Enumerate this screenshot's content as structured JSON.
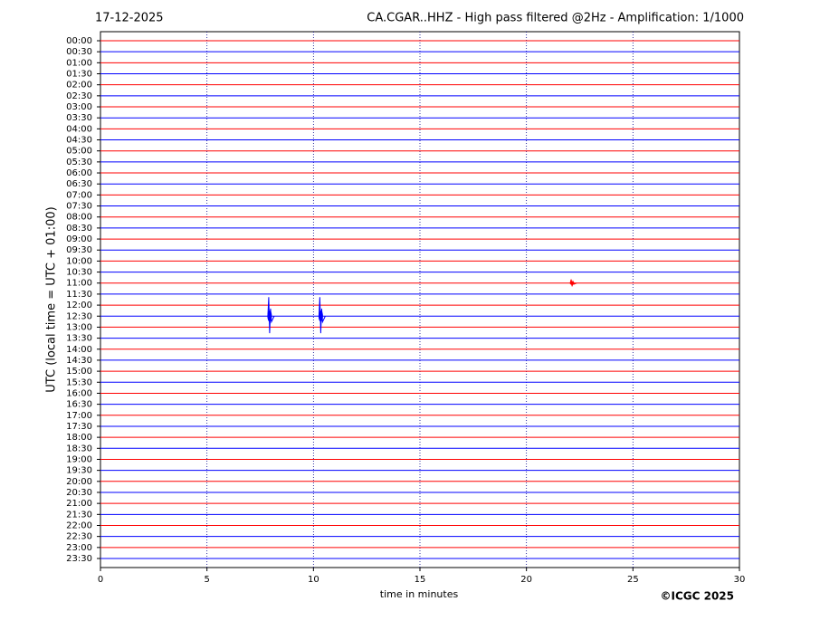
{
  "chart_data": {
    "type": "helicorder",
    "date": "17-12-2025",
    "title": "CA.CGAR..HHZ - High pass filtered @2Hz - Amplification: 1/1000",
    "y_label": "UTC (local time = UTC + 01:00)",
    "x_label": "time in minutes",
    "copyright": "©ICGC 2025",
    "categories": [
      "00:00",
      "00:30",
      "01:00",
      "01:30",
      "02:00",
      "02:30",
      "03:00",
      "03:30",
      "04:00",
      "04:30",
      "05:00",
      "05:30",
      "06:00",
      "06:30",
      "07:00",
      "07:30",
      "08:00",
      "08:30",
      "09:00",
      "09:30",
      "10:00",
      "10:30",
      "11:00",
      "11:30",
      "12:00",
      "12:30",
      "13:00",
      "13:30",
      "14:00",
      "14:30",
      "15:00",
      "15:30",
      "16:00",
      "16:30",
      "17:00",
      "17:30",
      "18:00",
      "18:30",
      "19:00",
      "19:30",
      "20:00",
      "20:30",
      "21:00",
      "21:30",
      "22:00",
      "22:30",
      "23:00",
      "23:30"
    ],
    "colors": [
      "#ff0000",
      "#0000ff"
    ],
    "xlim": [
      0,
      30
    ],
    "xticks": [
      0,
      5,
      10,
      15,
      20,
      25,
      30
    ],
    "grid": true,
    "events": [
      {
        "time": "12:30",
        "x": 7.9
      },
      {
        "time": "12:30",
        "x": 10.3
      },
      {
        "time": "11:00",
        "x": 22.1
      }
    ]
  }
}
